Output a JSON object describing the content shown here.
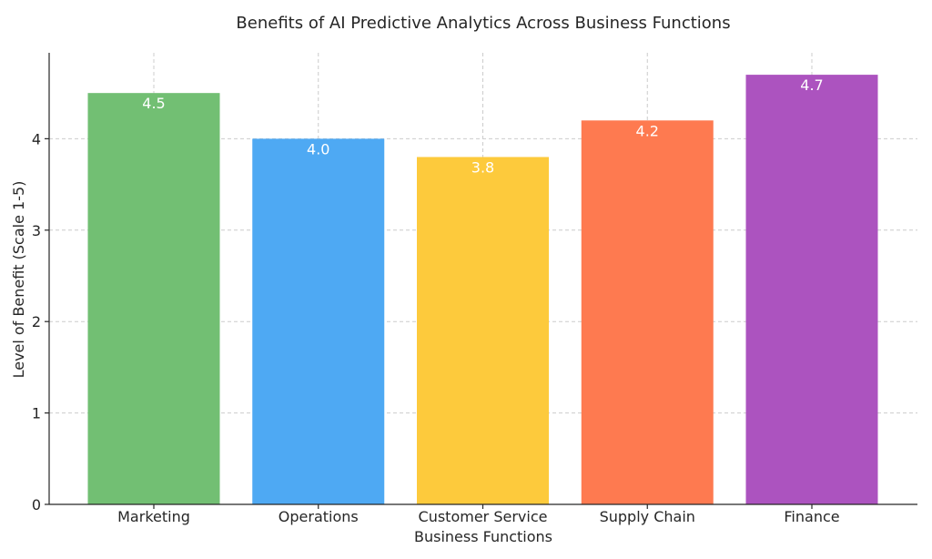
{
  "chart_data": {
    "type": "bar",
    "title": "Benefits of AI Predictive Analytics Across Business Functions",
    "xlabel": "Business Functions",
    "ylabel": "Level of Benefit (Scale 1-5)",
    "categories": [
      "Marketing",
      "Operations",
      "Customer Service",
      "Supply Chain",
      "Finance"
    ],
    "values": [
      4.5,
      4.0,
      3.8,
      4.2,
      4.7
    ],
    "value_labels": [
      "4.5",
      "4.0",
      "3.8",
      "4.2",
      "4.7"
    ],
    "colors": [
      "#72bf73",
      "#4ea9f3",
      "#fdca3c",
      "#fe7a50",
      "#ac53bf"
    ],
    "ylim": [
      0,
      4.94
    ],
    "yticks": [
      0,
      1,
      2,
      3,
      4
    ],
    "ytick_labels": [
      "0",
      "1",
      "2",
      "3",
      "4"
    ],
    "grid": true
  }
}
